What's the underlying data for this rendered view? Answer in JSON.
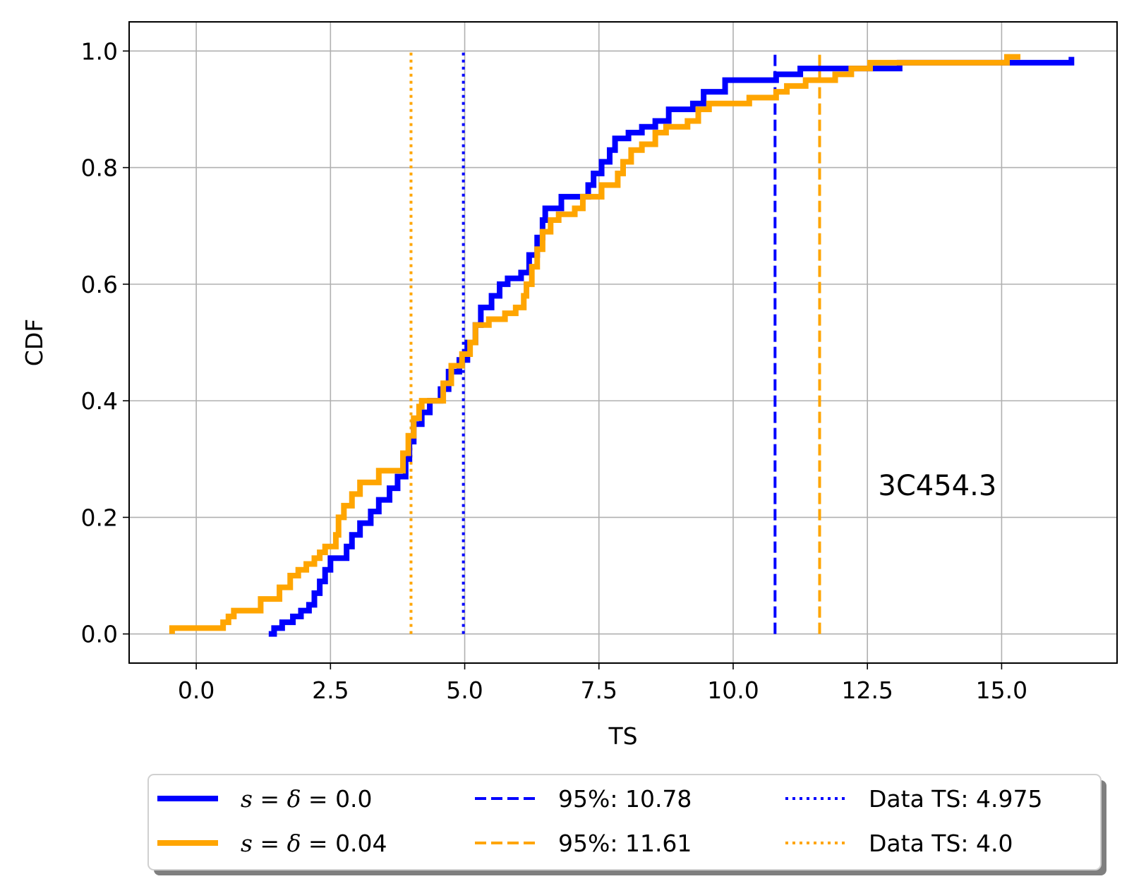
{
  "chart_data": {
    "type": "line",
    "xlabel": "TS",
    "ylabel": "CDF",
    "xlim": [
      -1.25,
      17.15
    ],
    "ylim": [
      -0.05,
      1.05
    ],
    "xticks": [
      0.0,
      2.5,
      5.0,
      7.5,
      10.0,
      12.5,
      15.0
    ],
    "xtick_labels": [
      "0.0",
      "2.5",
      "5.0",
      "7.5",
      "10.0",
      "12.5",
      "15.0"
    ],
    "yticks": [
      0.0,
      0.2,
      0.4,
      0.6,
      0.8,
      1.0
    ],
    "ytick_labels": [
      "0.0",
      "0.2",
      "0.4",
      "0.6",
      "0.8",
      "1.0"
    ],
    "grid": true,
    "annotation": "3C454.3",
    "legend_position": "below",
    "series": [
      {
        "name": "s = δ = 0.0",
        "kind": "ecdf",
        "color": "#0000ff",
        "points": [
          [
            1.35,
            0.0
          ],
          [
            1.45,
            0.01
          ],
          [
            1.6,
            0.02
          ],
          [
            1.8,
            0.03
          ],
          [
            1.95,
            0.04
          ],
          [
            2.1,
            0.05
          ],
          [
            2.2,
            0.07
          ],
          [
            2.3,
            0.09
          ],
          [
            2.4,
            0.11
          ],
          [
            2.5,
            0.13
          ],
          [
            2.8,
            0.15
          ],
          [
            2.9,
            0.17
          ],
          [
            3.05,
            0.19
          ],
          [
            3.25,
            0.21
          ],
          [
            3.4,
            0.23
          ],
          [
            3.6,
            0.25
          ],
          [
            3.75,
            0.27
          ],
          [
            3.9,
            0.3
          ],
          [
            3.97,
            0.33
          ],
          [
            4.05,
            0.36
          ],
          [
            4.2,
            0.38
          ],
          [
            4.35,
            0.4
          ],
          [
            4.55,
            0.42
          ],
          [
            4.7,
            0.45
          ],
          [
            4.9,
            0.47
          ],
          [
            5.05,
            0.5
          ],
          [
            5.2,
            0.53
          ],
          [
            5.3,
            0.56
          ],
          [
            5.5,
            0.58
          ],
          [
            5.65,
            0.6
          ],
          [
            5.8,
            0.61
          ],
          [
            6.05,
            0.62
          ],
          [
            6.2,
            0.65
          ],
          [
            6.35,
            0.68
          ],
          [
            6.45,
            0.71
          ],
          [
            6.5,
            0.73
          ],
          [
            6.8,
            0.75
          ],
          [
            7.3,
            0.77
          ],
          [
            7.4,
            0.79
          ],
          [
            7.55,
            0.81
          ],
          [
            7.7,
            0.83
          ],
          [
            7.8,
            0.85
          ],
          [
            8.05,
            0.86
          ],
          [
            8.3,
            0.87
          ],
          [
            8.55,
            0.88
          ],
          [
            8.8,
            0.9
          ],
          [
            9.25,
            0.91
          ],
          [
            9.45,
            0.93
          ],
          [
            9.85,
            0.95
          ],
          [
            10.8,
            0.96
          ],
          [
            11.25,
            0.97
          ],
          [
            13.1,
            0.98
          ],
          [
            16.3,
            0.99
          ]
        ],
        "x_end": 16.3
      },
      {
        "name": "s = δ = 0.04",
        "kind": "ecdf",
        "color": "#ffa500",
        "points": [
          [
            -0.45,
            0.0
          ],
          [
            -0.45,
            0.01
          ],
          [
            0.5,
            0.02
          ],
          [
            0.6,
            0.03
          ],
          [
            0.7,
            0.04
          ],
          [
            1.2,
            0.06
          ],
          [
            1.55,
            0.08
          ],
          [
            1.75,
            0.1
          ],
          [
            1.9,
            0.11
          ],
          [
            2.05,
            0.12
          ],
          [
            2.2,
            0.13
          ],
          [
            2.3,
            0.14
          ],
          [
            2.4,
            0.15
          ],
          [
            2.6,
            0.17
          ],
          [
            2.65,
            0.2
          ],
          [
            2.75,
            0.22
          ],
          [
            2.9,
            0.24
          ],
          [
            3.05,
            0.26
          ],
          [
            3.4,
            0.28
          ],
          [
            3.85,
            0.31
          ],
          [
            3.95,
            0.34
          ],
          [
            4.05,
            0.37
          ],
          [
            4.15,
            0.39
          ],
          [
            4.2,
            0.4
          ],
          [
            4.6,
            0.43
          ],
          [
            4.75,
            0.46
          ],
          [
            4.95,
            0.48
          ],
          [
            5.1,
            0.5
          ],
          [
            5.2,
            0.53
          ],
          [
            5.45,
            0.54
          ],
          [
            5.75,
            0.55
          ],
          [
            5.95,
            0.56
          ],
          [
            6.1,
            0.58
          ],
          [
            6.15,
            0.6
          ],
          [
            6.25,
            0.63
          ],
          [
            6.35,
            0.66
          ],
          [
            6.45,
            0.69
          ],
          [
            6.6,
            0.71
          ],
          [
            6.75,
            0.72
          ],
          [
            7.05,
            0.73
          ],
          [
            7.2,
            0.75
          ],
          [
            7.55,
            0.77
          ],
          [
            7.85,
            0.79
          ],
          [
            7.95,
            0.81
          ],
          [
            8.1,
            0.83
          ],
          [
            8.3,
            0.84
          ],
          [
            8.55,
            0.86
          ],
          [
            8.75,
            0.87
          ],
          [
            9.15,
            0.88
          ],
          [
            9.35,
            0.9
          ],
          [
            9.55,
            0.91
          ],
          [
            10.3,
            0.92
          ],
          [
            10.8,
            0.93
          ],
          [
            11.0,
            0.94
          ],
          [
            11.35,
            0.95
          ],
          [
            11.9,
            0.96
          ],
          [
            12.2,
            0.97
          ],
          [
            12.55,
            0.98
          ],
          [
            15.1,
            0.99
          ]
        ],
        "x_end": 15.35
      }
    ],
    "vlines": [
      {
        "name": "95%: 10.78",
        "x": 10.78,
        "color": "#0000ff",
        "style": "dashed"
      },
      {
        "name": "95%: 11.61",
        "x": 11.61,
        "color": "#ffa500",
        "style": "dashed"
      },
      {
        "name": "Data TS: 4.975",
        "x": 4.975,
        "color": "#0000ff",
        "style": "dotted"
      },
      {
        "name": "Data TS: 4.0",
        "x": 4.0,
        "color": "#ffa500",
        "style": "dotted"
      }
    ],
    "vline_range": [
      0.0,
      1.0
    ]
  },
  "legend": {
    "items": [
      {
        "math": "s = δ = ",
        "value": "0.0",
        "color": "#0000ff",
        "style": "solid"
      },
      {
        "math": "s = δ = ",
        "value": "0.04",
        "color": "#ffa500",
        "style": "solid"
      },
      {
        "label": "95%: 10.78",
        "color": "#0000ff",
        "style": "dashed"
      },
      {
        "label": "95%: 11.61",
        "color": "#ffa500",
        "style": "dashed"
      },
      {
        "label": "Data TS: 4.975",
        "color": "#0000ff",
        "style": "dotted"
      },
      {
        "label": "Data TS: 4.0",
        "color": "#ffa500",
        "style": "dotted"
      }
    ]
  }
}
